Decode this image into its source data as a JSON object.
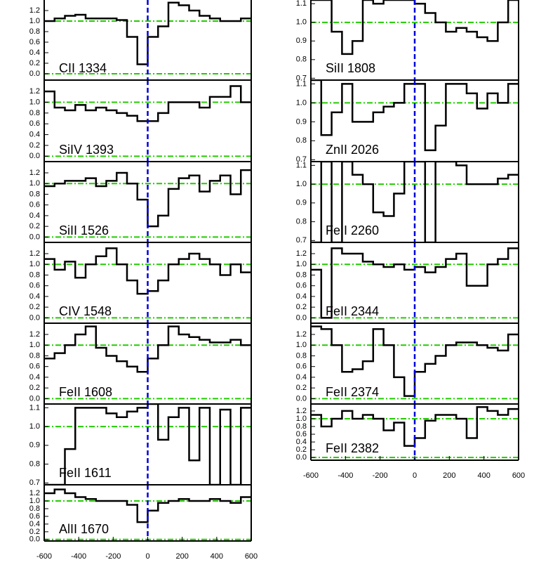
{
  "chart_data": [
    {
      "type": "line",
      "title": "CII 1334",
      "color": "#000000",
      "x": [
        -600,
        -540,
        -480,
        -420,
        -360,
        -300,
        -240,
        -180,
        -120,
        -60,
        0,
        60,
        120,
        180,
        240,
        300,
        360,
        420,
        480,
        540
      ],
      "values": [
        1.0,
        1.05,
        1.1,
        1.12,
        1.05,
        1.05,
        1.05,
        1.02,
        0.7,
        0.18,
        0.7,
        0.9,
        1.35,
        1.3,
        1.2,
        1.1,
        1.05,
        1.0,
        1.0,
        1.05
      ],
      "xlim": [
        -600,
        600
      ],
      "ylim": [
        -0.12,
        1.4
      ],
      "yticks": [
        {
          "value": 0,
          "label": "0.0"
        },
        0.2,
        0.4,
        0.6,
        0.8,
        {
          "value": 1,
          "label": "1.0"
        },
        1.2
      ],
      "hlines": [
        0,
        1
      ],
      "vlines": [
        0
      ]
    },
    {
      "type": "line",
      "title": "SiIV 1393",
      "color": "#000000",
      "x": [
        -600,
        -540,
        -480,
        -420,
        -360,
        -300,
        -240,
        -180,
        -120,
        -60,
        0,
        60,
        120,
        180,
        240,
        300,
        360,
        420,
        480,
        540
      ],
      "values": [
        1.2,
        0.9,
        0.85,
        0.95,
        0.85,
        0.9,
        0.85,
        0.8,
        0.75,
        0.65,
        0.65,
        0.8,
        1.0,
        1.0,
        1.0,
        0.9,
        1.1,
        1.1,
        1.3,
        1.0
      ],
      "xlim": [
        -600,
        600
      ],
      "ylim": [
        -0.1,
        1.41
      ],
      "yticks": [
        {
          "value": 0,
          "label": "0.0"
        },
        0.2,
        0.4,
        0.6,
        0.8,
        {
          "value": 1,
          "label": "1.0"
        },
        1.2
      ],
      "hlines": [
        0,
        1
      ],
      "vlines": [
        0
      ]
    },
    {
      "type": "line",
      "title": "SiII 1526",
      "color": "#000000",
      "x": [
        -600,
        -540,
        -480,
        -420,
        -360,
        -300,
        -240,
        -180,
        -120,
        -60,
        0,
        60,
        120,
        180,
        240,
        300,
        360,
        420,
        480,
        540
      ],
      "values": [
        0.95,
        1.0,
        1.05,
        1.05,
        1.1,
        0.95,
        1.05,
        1.2,
        1.0,
        0.7,
        0.2,
        0.4,
        0.9,
        1.1,
        1.15,
        0.85,
        1.05,
        1.15,
        0.8,
        1.25
      ],
      "xlim": [
        -600,
        600
      ],
      "ylim": [
        -0.1,
        1.41
      ],
      "yticks": [
        {
          "value": 0,
          "label": "0.0"
        },
        0.2,
        0.4,
        0.6,
        0.8,
        {
          "value": 1,
          "label": "1.0"
        },
        1.2
      ],
      "hlines": [
        0,
        1
      ],
      "vlines": [
        0
      ]
    },
    {
      "type": "line",
      "title": "CIV 1548",
      "color": "#000000",
      "x": [
        -600,
        -540,
        -480,
        -420,
        -360,
        -300,
        -240,
        -180,
        -120,
        -60,
        0,
        60,
        120,
        180,
        240,
        300,
        360,
        420,
        480,
        540
      ],
      "values": [
        1.1,
        0.9,
        1.05,
        0.75,
        1.0,
        1.15,
        1.3,
        1.0,
        0.7,
        0.45,
        0.5,
        0.7,
        1.0,
        1.1,
        1.2,
        1.1,
        1.0,
        0.8,
        1.0,
        0.85
      ],
      "xlim": [
        -600,
        600
      ],
      "ylim": [
        -0.1,
        1.41
      ],
      "yticks": [
        {
          "value": 0,
          "label": "0.0"
        },
        0.2,
        0.4,
        0.6,
        0.8,
        {
          "value": 1,
          "label": "1.0"
        },
        1.2
      ],
      "hlines": [
        0,
        1
      ],
      "vlines": [
        0
      ]
    },
    {
      "type": "line",
      "title": "FeII 1608",
      "color": "#000000",
      "x": [
        -600,
        -540,
        -480,
        -420,
        -360,
        -300,
        -240,
        -180,
        -120,
        -60,
        0,
        60,
        120,
        180,
        240,
        300,
        360,
        420,
        480,
        540
      ],
      "values": [
        0.75,
        0.85,
        1.0,
        1.2,
        1.35,
        0.95,
        0.8,
        0.7,
        0.6,
        0.5,
        0.75,
        1.0,
        1.35,
        1.2,
        1.15,
        1.1,
        1.05,
        1.05,
        1.1,
        1.0
      ],
      "xlim": [
        -600,
        600
      ],
      "ylim": [
        -0.1,
        1.41
      ],
      "yticks": [
        {
          "value": 0,
          "label": "0.0"
        },
        0.2,
        0.4,
        0.6,
        0.8,
        {
          "value": 1,
          "label": "1.0"
        },
        1.2
      ],
      "hlines": [
        0,
        1
      ],
      "vlines": [
        0
      ]
    },
    {
      "type": "line",
      "title": "FeII 1611",
      "color": "#000000",
      "x": [
        -600,
        -540,
        -480,
        -420,
        -360,
        -300,
        -240,
        -180,
        -120,
        -60,
        0,
        60,
        120,
        180,
        240,
        300,
        360,
        420,
        480,
        540
      ],
      "values": [
        0.69,
        0.69,
        0.88,
        1.1,
        1.1,
        1.1,
        1.07,
        1.05,
        1.08,
        1.1,
        1.12,
        0.93,
        1.05,
        1.1,
        0.82,
        1.1,
        0.69,
        1.09,
        0.69,
        1.1
      ],
      "xlim": [
        -600,
        600
      ],
      "ylim": [
        0.69,
        1.12
      ],
      "yticks": [
        0.7,
        0.8,
        0.9,
        {
          "value": 1,
          "label": "1.0"
        },
        1.1
      ],
      "hlines": [
        1
      ],
      "vlines": [
        0
      ]
    },
    {
      "type": "line",
      "title": "AlII 1670",
      "color": "#000000",
      "x": [
        -600,
        -540,
        -480,
        -420,
        -360,
        -300,
        -240,
        -180,
        -120,
        -60,
        0,
        60,
        120,
        180,
        240,
        300,
        360,
        420,
        480,
        540
      ],
      "values": [
        1.2,
        1.3,
        1.2,
        1.1,
        1.05,
        1.0,
        1.0,
        1.0,
        0.9,
        0.45,
        0.75,
        0.95,
        1.0,
        1.05,
        1.0,
        1.0,
        1.05,
        1.0,
        0.95,
        1.1
      ],
      "xlim": [
        -600,
        600
      ],
      "ylim": [
        -0.04,
        1.42
      ],
      "yticks": [
        {
          "value": 0,
          "label": "0.0"
        },
        0.2,
        0.4,
        0.6,
        0.8,
        {
          "value": 1,
          "label": "1.0"
        },
        1.2
      ],
      "xticks": [
        -600,
        -400,
        -200,
        0,
        200,
        400,
        600
      ],
      "hlines": [
        0,
        1
      ],
      "vlines": [
        0
      ]
    },
    {
      "type": "line",
      "title": "SiII 1808",
      "color": "#000000",
      "x": [
        -600,
        -540,
        -480,
        -420,
        -360,
        -300,
        -240,
        -180,
        -120,
        -60,
        0,
        60,
        120,
        180,
        240,
        300,
        360,
        420,
        480,
        540
      ],
      "values": [
        1.12,
        1.12,
        0.95,
        0.83,
        0.9,
        1.12,
        1.1,
        1.12,
        1.12,
        1.12,
        1.1,
        1.05,
        1.0,
        0.95,
        0.97,
        0.95,
        0.92,
        0.9,
        1.0,
        1.12
      ],
      "xlim": [
        -600,
        600
      ],
      "ylim": [
        0.69,
        1.12
      ],
      "yticks": [
        0.7,
        0.8,
        0.9,
        {
          "value": 1,
          "label": "1.0"
        },
        1.1
      ],
      "hlines": [
        1
      ],
      "vlines": [
        0
      ]
    },
    {
      "type": "line",
      "title": "ZnII 2026",
      "color": "#000000",
      "x": [
        -600,
        -540,
        -480,
        -420,
        -360,
        -300,
        -240,
        -180,
        -120,
        -60,
        0,
        60,
        120,
        180,
        240,
        300,
        360,
        420,
        480,
        540
      ],
      "values": [
        1.12,
        0.83,
        0.95,
        1.1,
        0.9,
        0.9,
        0.95,
        0.98,
        1.0,
        1.1,
        1.1,
        0.75,
        0.88,
        1.1,
        1.1,
        1.05,
        0.97,
        1.05,
        1.0,
        1.1
      ],
      "xlim": [
        -600,
        600
      ],
      "ylim": [
        0.69,
        1.12
      ],
      "yticks": [
        0.7,
        0.8,
        0.9,
        {
          "value": 1,
          "label": "1.0"
        },
        1.1
      ],
      "hlines": [
        1
      ],
      "vlines": [
        0
      ]
    },
    {
      "type": "line",
      "title": "FeII 2260",
      "color": "#000000",
      "x": [
        -600,
        -540,
        -480,
        -420,
        -360,
        -300,
        -240,
        -180,
        -120,
        -60,
        0,
        60,
        120,
        180,
        240,
        300,
        360,
        420,
        480,
        540
      ],
      "values": [
        0.69,
        1.12,
        0.69,
        1.12,
        1.05,
        1.0,
        0.85,
        0.83,
        0.95,
        1.12,
        1.12,
        0.69,
        1.12,
        1.12,
        1.1,
        1.0,
        1.0,
        1.0,
        1.03,
        1.05
      ],
      "xlim": [
        -600,
        600
      ],
      "ylim": [
        0.69,
        1.12
      ],
      "yticks": [
        0.7,
        0.8,
        0.9,
        {
          "value": 1,
          "label": "1.0"
        },
        1.1
      ],
      "hlines": [
        1
      ],
      "vlines": [
        0
      ]
    },
    {
      "type": "line",
      "title": "FeII 2344",
      "color": "#000000",
      "x": [
        -600,
        -540,
        -480,
        -420,
        -360,
        -300,
        -240,
        -180,
        -120,
        -60,
        0,
        60,
        120,
        180,
        240,
        300,
        360,
        420,
        480,
        540
      ],
      "values": [
        0.9,
        0.0,
        1.3,
        1.2,
        1.2,
        1.05,
        1.0,
        0.95,
        1.0,
        0.9,
        0.95,
        0.85,
        0.95,
        1.1,
        1.2,
        0.6,
        0.6,
        1.0,
        1.1,
        1.3
      ],
      "xlim": [
        -600,
        600
      ],
      "ylim": [
        -0.1,
        1.41
      ],
      "yticks": [
        {
          "value": 0,
          "label": "0.0"
        },
        0.2,
        0.4,
        0.6,
        0.8,
        {
          "value": 1,
          "label": "1.0"
        },
        1.2
      ],
      "hlines": [
        0,
        1
      ],
      "vlines": [
        0
      ]
    },
    {
      "type": "line",
      "title": "FeII 2374",
      "color": "#000000",
      "x": [
        -600,
        -540,
        -480,
        -420,
        -360,
        -300,
        -240,
        -180,
        -120,
        -60,
        0,
        60,
        120,
        180,
        240,
        300,
        360,
        420,
        480,
        540
      ],
      "values": [
        1.35,
        1.3,
        1.0,
        0.5,
        0.55,
        0.7,
        1.3,
        1.0,
        0.4,
        0.05,
        0.5,
        0.65,
        0.8,
        1.0,
        1.05,
        1.05,
        1.0,
        0.95,
        0.9,
        1.2
      ],
      "xlim": [
        -600,
        600
      ],
      "ylim": [
        -0.1,
        1.41
      ],
      "yticks": [
        {
          "value": 0,
          "label": "0.0"
        },
        0.2,
        0.4,
        0.6,
        0.8,
        {
          "value": 1,
          "label": "1.0"
        },
        1.2
      ],
      "hlines": [
        0,
        1
      ],
      "vlines": [
        0
      ]
    },
    {
      "type": "line",
      "title": "FeII 2382",
      "color": "#000000",
      "x": [
        -600,
        -540,
        -480,
        -420,
        -360,
        -300,
        -240,
        -180,
        -120,
        -60,
        0,
        60,
        120,
        180,
        240,
        300,
        360,
        420,
        480,
        540
      ],
      "values": [
        1.1,
        0.8,
        1.0,
        1.2,
        1.0,
        1.1,
        1.0,
        0.7,
        0.9,
        0.3,
        0.5,
        0.95,
        1.1,
        1.1,
        1.0,
        0.5,
        1.3,
        1.2,
        1.1,
        1.25
      ],
      "xlim": [
        -600,
        600
      ],
      "ylim": [
        -0.07,
        1.38
      ],
      "yticks": [
        {
          "value": 0,
          "label": "0.0"
        },
        0.2,
        0.4,
        0.6,
        0.8,
        {
          "value": 1,
          "label": "1.0"
        },
        1.2
      ],
      "xticks": [
        -600,
        -400,
        -200,
        0,
        200,
        400,
        600
      ],
      "hlines": [
        0,
        1
      ],
      "vlines": [
        0
      ]
    }
  ]
}
